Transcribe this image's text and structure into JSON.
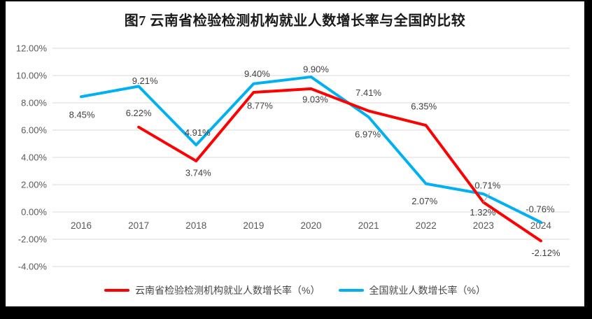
{
  "frame": {
    "background": "#000000",
    "panel_background": "#ffffff"
  },
  "chart_data": {
    "type": "line",
    "title": "图7  云南省检验检测机构就业人数增长率与全国的比较",
    "categories": [
      "2016",
      "2017",
      "2018",
      "2019",
      "2020",
      "2021",
      "2022",
      "2023",
      "2024"
    ],
    "series": [
      {
        "name": "云南省检验检测机构就业人数增长率（%）",
        "color": "#FF0000",
        "values": [
          null,
          6.22,
          3.74,
          8.77,
          9.03,
          7.41,
          6.35,
          0.71,
          -2.12
        ],
        "labels": [
          null,
          "6.22%",
          "3.74%",
          "8.77%",
          "9.03%",
          "7.41%",
          "6.35%",
          "0.71%",
          "-2.12%"
        ],
        "label_dx": [
          0,
          0,
          3,
          9,
          6,
          0,
          -3,
          6,
          7
        ],
        "label_dy": [
          0,
          -20,
          17,
          19,
          15,
          -26,
          -27,
          -24,
          17
        ]
      },
      {
        "name": "全国就业人数增长率（%）",
        "color": "#00B0F0",
        "values": [
          8.45,
          9.21,
          4.91,
          9.4,
          9.9,
          6.97,
          2.07,
          1.32,
          -0.76
        ],
        "labels": [
          "8.45%",
          "9.21%",
          "4.91%",
          "9.40%",
          "9.90%",
          "6.97%",
          "2.07%",
          "1.32%",
          "-0.76%"
        ],
        "label_dx": [
          1,
          9,
          2,
          5,
          7,
          -1,
          -2,
          -1,
          -1
        ],
        "label_dy": [
          26,
          -8,
          -18,
          -14,
          -11,
          25,
          25,
          26,
          -19
        ]
      }
    ],
    "y_axis": {
      "ticks": [
        "12.00%",
        "10.00%",
        "8.00%",
        "6.00%",
        "4.00%",
        "2.00%",
        "0.00%",
        "-2.00%",
        "-4.00%"
      ],
      "tick_values": [
        12,
        10,
        8,
        6,
        4,
        2,
        0,
        -2,
        -4
      ],
      "min": -4,
      "max": 12
    },
    "grid": true,
    "legend_position": "bottom",
    "leader_line": {
      "series": 0,
      "index": 7,
      "dx": 9,
      "dy": -13
    },
    "colors": {
      "gridline": "#D9D9D9",
      "axis_text": "#595959",
      "data_label": "#404040",
      "leader": "#A6A6A6"
    }
  }
}
